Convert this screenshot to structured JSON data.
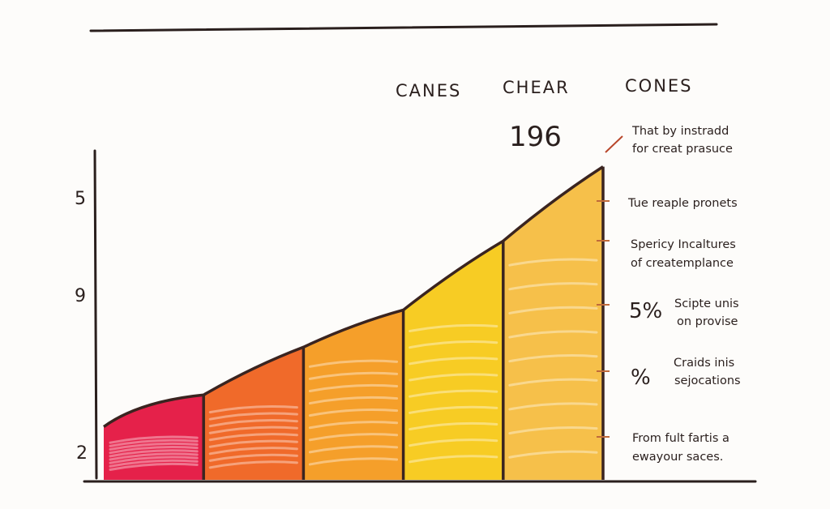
{
  "chart_data": {
    "type": "area",
    "title": "",
    "column_headers": [
      "CANES",
      "CHEAR",
      "CONES"
    ],
    "highlight_value": "196",
    "y_ticks": [
      "5",
      "9",
      "2"
    ],
    "values": [
      5,
      8,
      12.5,
      16,
      22.5,
      29.5
    ],
    "ylim": [
      0,
      31
    ],
    "colors": [
      "#e5214a",
      "#f06a2a",
      "#f59f2a",
      "#f7cc24",
      "#f6c04a"
    ],
    "annotations": [
      {
        "lines": [
          "That by instradd",
          "for creat prasuce"
        ]
      },
      {
        "lines": [
          "Tue reaple pronets"
        ]
      },
      {
        "lines": [
          "Spericy Incaltures",
          "of createmplance"
        ]
      },
      {
        "pct": "5%",
        "lines": [
          "Scipte unis",
          "on provise"
        ]
      },
      {
        "pct": "%",
        "lines": [
          "Craids inis",
          "sejocations"
        ]
      },
      {
        "lines": [
          "From fult fartis a",
          "ewayour saces."
        ]
      }
    ]
  }
}
